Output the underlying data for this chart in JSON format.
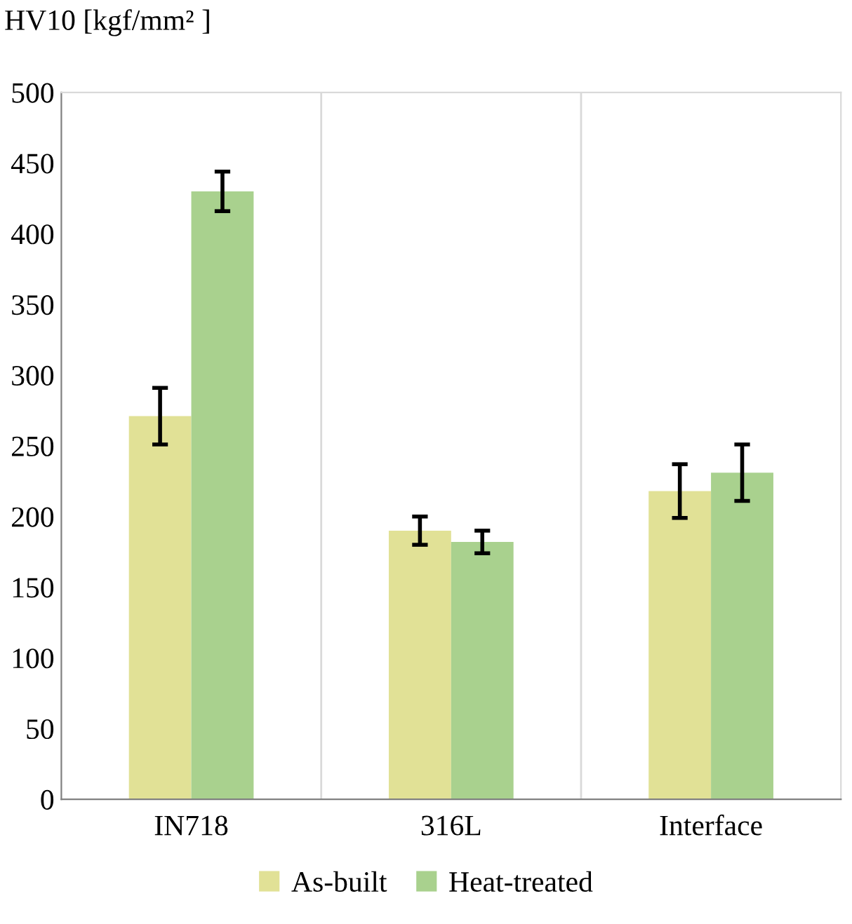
{
  "chart_data": {
    "type": "bar",
    "ylabel": "HV10 [kgf/mm² ]",
    "categories": [
      "IN718",
      "316L",
      "Interface"
    ],
    "series": [
      {
        "name": "As-built",
        "color": "#e1e196",
        "values": [
          271,
          190,
          218
        ],
        "errors": [
          20,
          10,
          19
        ]
      },
      {
        "name": "Heat-treated",
        "color": "#a9d18e",
        "values": [
          430,
          182,
          231
        ],
        "errors": [
          14,
          8,
          20
        ]
      }
    ],
    "ylim": [
      0,
      500
    ],
    "yticks": [
      0,
      50,
      100,
      150,
      200,
      250,
      300,
      350,
      400,
      450,
      500
    ],
    "grid": "x",
    "legend": "bottom"
  }
}
